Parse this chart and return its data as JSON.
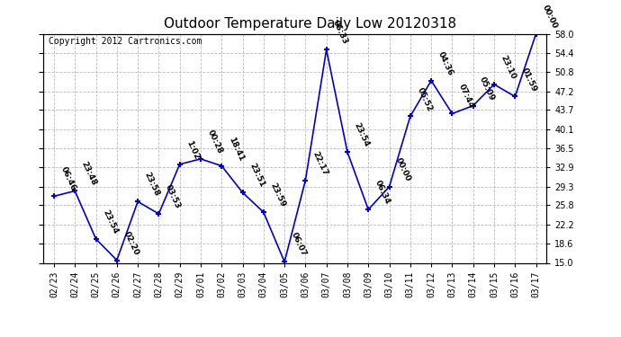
{
  "title": "Outdoor Temperature Daily Low 20120318",
  "copyright_text": "Copyright 2012 Cartronics.com",
  "background_color": "#ffffff",
  "plot_bg_color": "#ffffff",
  "grid_color": "#bbbbbb",
  "line_color": "#0000cc",
  "marker_color": "#0000cc",
  "x_labels": [
    "02/23",
    "02/24",
    "02/25",
    "02/26",
    "02/27",
    "02/28",
    "02/29",
    "03/01",
    "03/02",
    "03/03",
    "03/04",
    "03/05",
    "03/06",
    "03/07",
    "03/08",
    "03/09",
    "03/10",
    "03/11",
    "03/12",
    "03/13",
    "03/14",
    "03/15",
    "03/16",
    "03/17"
  ],
  "y_values": [
    27.5,
    28.5,
    19.5,
    15.5,
    26.5,
    24.2,
    33.5,
    34.5,
    33.2,
    28.2,
    24.5,
    15.2,
    30.5,
    55.0,
    35.8,
    25.0,
    29.3,
    42.5,
    49.2,
    43.0,
    44.5,
    48.5,
    46.2,
    58.0
  ],
  "annotations": [
    "06:46",
    "23:48",
    "23:54",
    "02:20",
    "23:58",
    "03:53",
    "1:02",
    "00:28",
    "18:41",
    "23:51",
    "23:59",
    "06:07",
    "22:17",
    "06:33",
    "23:54",
    "06:34",
    "00:00",
    "05:52",
    "04:36",
    "07:44",
    "05:09",
    "23:10",
    "01:59",
    "00:00"
  ],
  "ylim": [
    15.0,
    58.0
  ],
  "yticks": [
    15.0,
    18.6,
    22.2,
    25.8,
    29.3,
    32.9,
    36.5,
    40.1,
    43.7,
    47.2,
    50.8,
    54.4,
    58.0
  ],
  "title_fontsize": 11,
  "annotation_fontsize": 6.5,
  "copyright_fontsize": 7,
  "tick_fontsize": 7
}
